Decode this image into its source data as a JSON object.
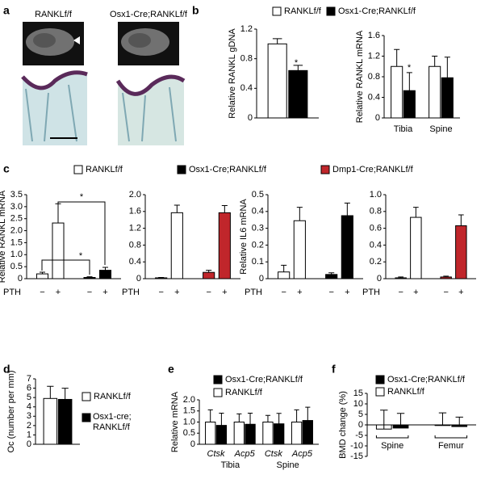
{
  "chart_data": [
    {
      "type": "image",
      "panel": "a",
      "labels": [
        "RANKLf/f",
        "Osx1-Cre;RANKLf/f"
      ]
    },
    {
      "type": "legend",
      "panel": "b",
      "entries": [
        {
          "name": "RANKLf/f",
          "color": "#ffffff"
        },
        {
          "name": "Osx1-Cre;RANKLf/f",
          "color": "#000000"
        }
      ]
    },
    {
      "type": "bar",
      "ylabel": "Relative RANKL gDNA",
      "categories": [
        null
      ],
      "ylim": [
        0,
        1.2
      ],
      "yticks": [
        0,
        0.4,
        0.8,
        1.2
      ],
      "series": [
        {
          "color": "#ffffff",
          "values": [
            1.0
          ],
          "errors": [
            0.07
          ]
        },
        {
          "color": "#000000",
          "values": [
            0.64
          ],
          "errors": [
            0.07
          ]
        }
      ],
      "annotations": [
        "*"
      ]
    },
    {
      "type": "bar",
      "ylabel": "Relative RANKL mRNA",
      "categories": [
        "Tibia",
        "Spine"
      ],
      "ylim": [
        0,
        1.6
      ],
      "yticks": [
        0,
        0.4,
        0.8,
        1.2,
        1.6
      ],
      "series": [
        {
          "color": "#ffffff",
          "values": [
            1.0,
            1.0
          ],
          "errors": [
            0.33,
            0.2
          ]
        },
        {
          "color": "#000000",
          "values": [
            0.53,
            0.78
          ],
          "errors": [
            0.35,
            0.4
          ]
        }
      ],
      "annotations": [
        "*"
      ]
    },
    {
      "type": "legend",
      "panel": "c",
      "entries": [
        {
          "name": "RANKLf/f",
          "color": "#ffffff"
        },
        {
          "name": "Osx1-Cre;RANKLf/f",
          "color": "#000000"
        },
        {
          "name": "Dmp1-Cre;RANKLf/f",
          "color": "#c0262b"
        }
      ]
    },
    {
      "type": "bar",
      "group_by": "series",
      "ylabel": "Relative RANKL mRNA",
      "xlabel": "PTH",
      "categories": [
        "−",
        "+"
      ],
      "ylim": [
        0,
        3.5
      ],
      "yticks": [
        0,
        0.5,
        {
          "value": 1,
          "label": "1.0"
        },
        1.5,
        {
          "value": 2,
          "label": "2.0"
        },
        2.5,
        {
          "value": 3,
          "label": "3.0"
        },
        3.5
      ],
      "series": [
        {
          "color": "#ffffff",
          "values": [
            0.2,
            2.32
          ],
          "errors": [
            0.07,
            0.8
          ]
        },
        {
          "color": "#000000",
          "values": [
            0.05,
            0.35
          ],
          "errors": [
            0.03,
            0.12
          ]
        }
      ],
      "annotations": [
        "*",
        "*"
      ]
    },
    {
      "type": "bar",
      "group_by": "series",
      "xlabel": "PTH",
      "categories": [
        "−",
        "+"
      ],
      "ylim": [
        0,
        2.0
      ],
      "yticks": [
        0,
        0.4,
        0.8,
        1.2,
        1.6,
        {
          "value": 2,
          "label": "2.0"
        }
      ],
      "series": [
        {
          "color": "#ffffff",
          "values": [
            0.02,
            1.57
          ],
          "errors": [
            0.01,
            0.18
          ]
        },
        {
          "color": "#c0262b",
          "values": [
            0.15,
            1.57
          ],
          "errors": [
            0.05,
            0.17
          ]
        }
      ]
    },
    {
      "type": "bar",
      "group_by": "series",
      "ylabel": "Relative IL6 mRNA",
      "xlabel": "PTH",
      "categories": [
        "−",
        "+"
      ],
      "ylim": [
        0,
        0.5
      ],
      "yticks": [
        0,
        0.1,
        0.2,
        0.3,
        0.4,
        0.5
      ],
      "series": [
        {
          "color": "#ffffff",
          "values": [
            0.04,
            0.345
          ],
          "errors": [
            0.04,
            0.08
          ]
        },
        {
          "color": "#000000",
          "values": [
            0.025,
            0.375
          ],
          "errors": [
            0.01,
            0.075
          ]
        }
      ]
    },
    {
      "type": "bar",
      "group_by": "series",
      "xlabel": "PTH",
      "categories": [
        "−",
        "+"
      ],
      "ylim": [
        0,
        1.0
      ],
      "yticks": [
        0,
        0.2,
        0.4,
        0.6,
        0.8,
        {
          "value": 1,
          "label": "1.0"
        }
      ],
      "series": [
        {
          "color": "#ffffff",
          "values": [
            0.01,
            0.73
          ],
          "errors": [
            0.01,
            0.12
          ]
        },
        {
          "color": "#c0262b",
          "values": [
            0.02,
            0.63
          ],
          "errors": [
            0.01,
            0.13
          ]
        }
      ]
    },
    {
      "type": "bar",
      "panel": "d",
      "ylabel": "Oc (number per mm)",
      "categories": [
        null
      ],
      "ylim": [
        0,
        7
      ],
      "yticks": [
        0,
        1,
        2,
        3,
        4,
        5,
        6,
        7
      ],
      "series": [
        {
          "color": "#ffffff",
          "values": [
            4.9
          ],
          "errors": [
            1.3
          ]
        },
        {
          "color": "#000000",
          "values": [
            4.8
          ],
          "errors": [
            1.2
          ]
        }
      ]
    },
    {
      "type": "legend",
      "entries": [
        {
          "name": "RANKLf/f",
          "color": "#ffffff"
        },
        {
          "name": "Osx1-cre;\nRANKLf/f",
          "color": "#000000"
        }
      ]
    },
    {
      "type": "legend",
      "panel": "e",
      "entries": [
        {
          "name": "Osx1-Cre;RANKLf/f",
          "color": "#000000"
        },
        {
          "name": "RANKLf/f",
          "color": "#ffffff"
        }
      ]
    },
    {
      "type": "bar",
      "ylabel": "Relative mRNA",
      "categories": [
        "Ctsk",
        "Acp5",
        "Ctsk",
        "Acp5"
      ],
      "groups": [
        "Tibia",
        "Spine"
      ],
      "ylim": [
        0,
        2.0
      ],
      "yticks": [
        0,
        0.5,
        {
          "value": 1,
          "label": "1.0"
        },
        1.5,
        {
          "value": 2,
          "label": "2.0"
        }
      ],
      "series": [
        {
          "color": "#ffffff",
          "values": [
            1.0,
            1.0,
            1.0,
            1.0
          ],
          "errors": [
            0.55,
            0.37,
            0.3,
            0.55
          ]
        },
        {
          "color": "#000000",
          "values": [
            0.85,
            0.9,
            0.92,
            1.07
          ],
          "errors": [
            0.55,
            0.5,
            0.47,
            0.6
          ]
        }
      ]
    },
    {
      "type": "legend",
      "panel": "f",
      "entries": [
        {
          "name": "Osx1-Cre;RANKLf/f",
          "color": "#000000"
        },
        {
          "name": "RANKLf/f",
          "color": "#ffffff"
        }
      ]
    },
    {
      "type": "bar",
      "ylabel": "BMD change (%)",
      "categories": [
        "Spine",
        "Femur"
      ],
      "ylim": [
        -15,
        15
      ],
      "yticks": [
        -15,
        -10,
        -5,
        0,
        5,
        10,
        15
      ],
      "series": [
        {
          "color": "#ffffff",
          "values": [
            -2,
            -0.3
          ],
          "errors": [
            9,
            6
          ]
        },
        {
          "color": "#000000",
          "values": [
            -1.5,
            -0.8
          ],
          "errors": [
            7,
            4.5
          ]
        }
      ]
    }
  ]
}
